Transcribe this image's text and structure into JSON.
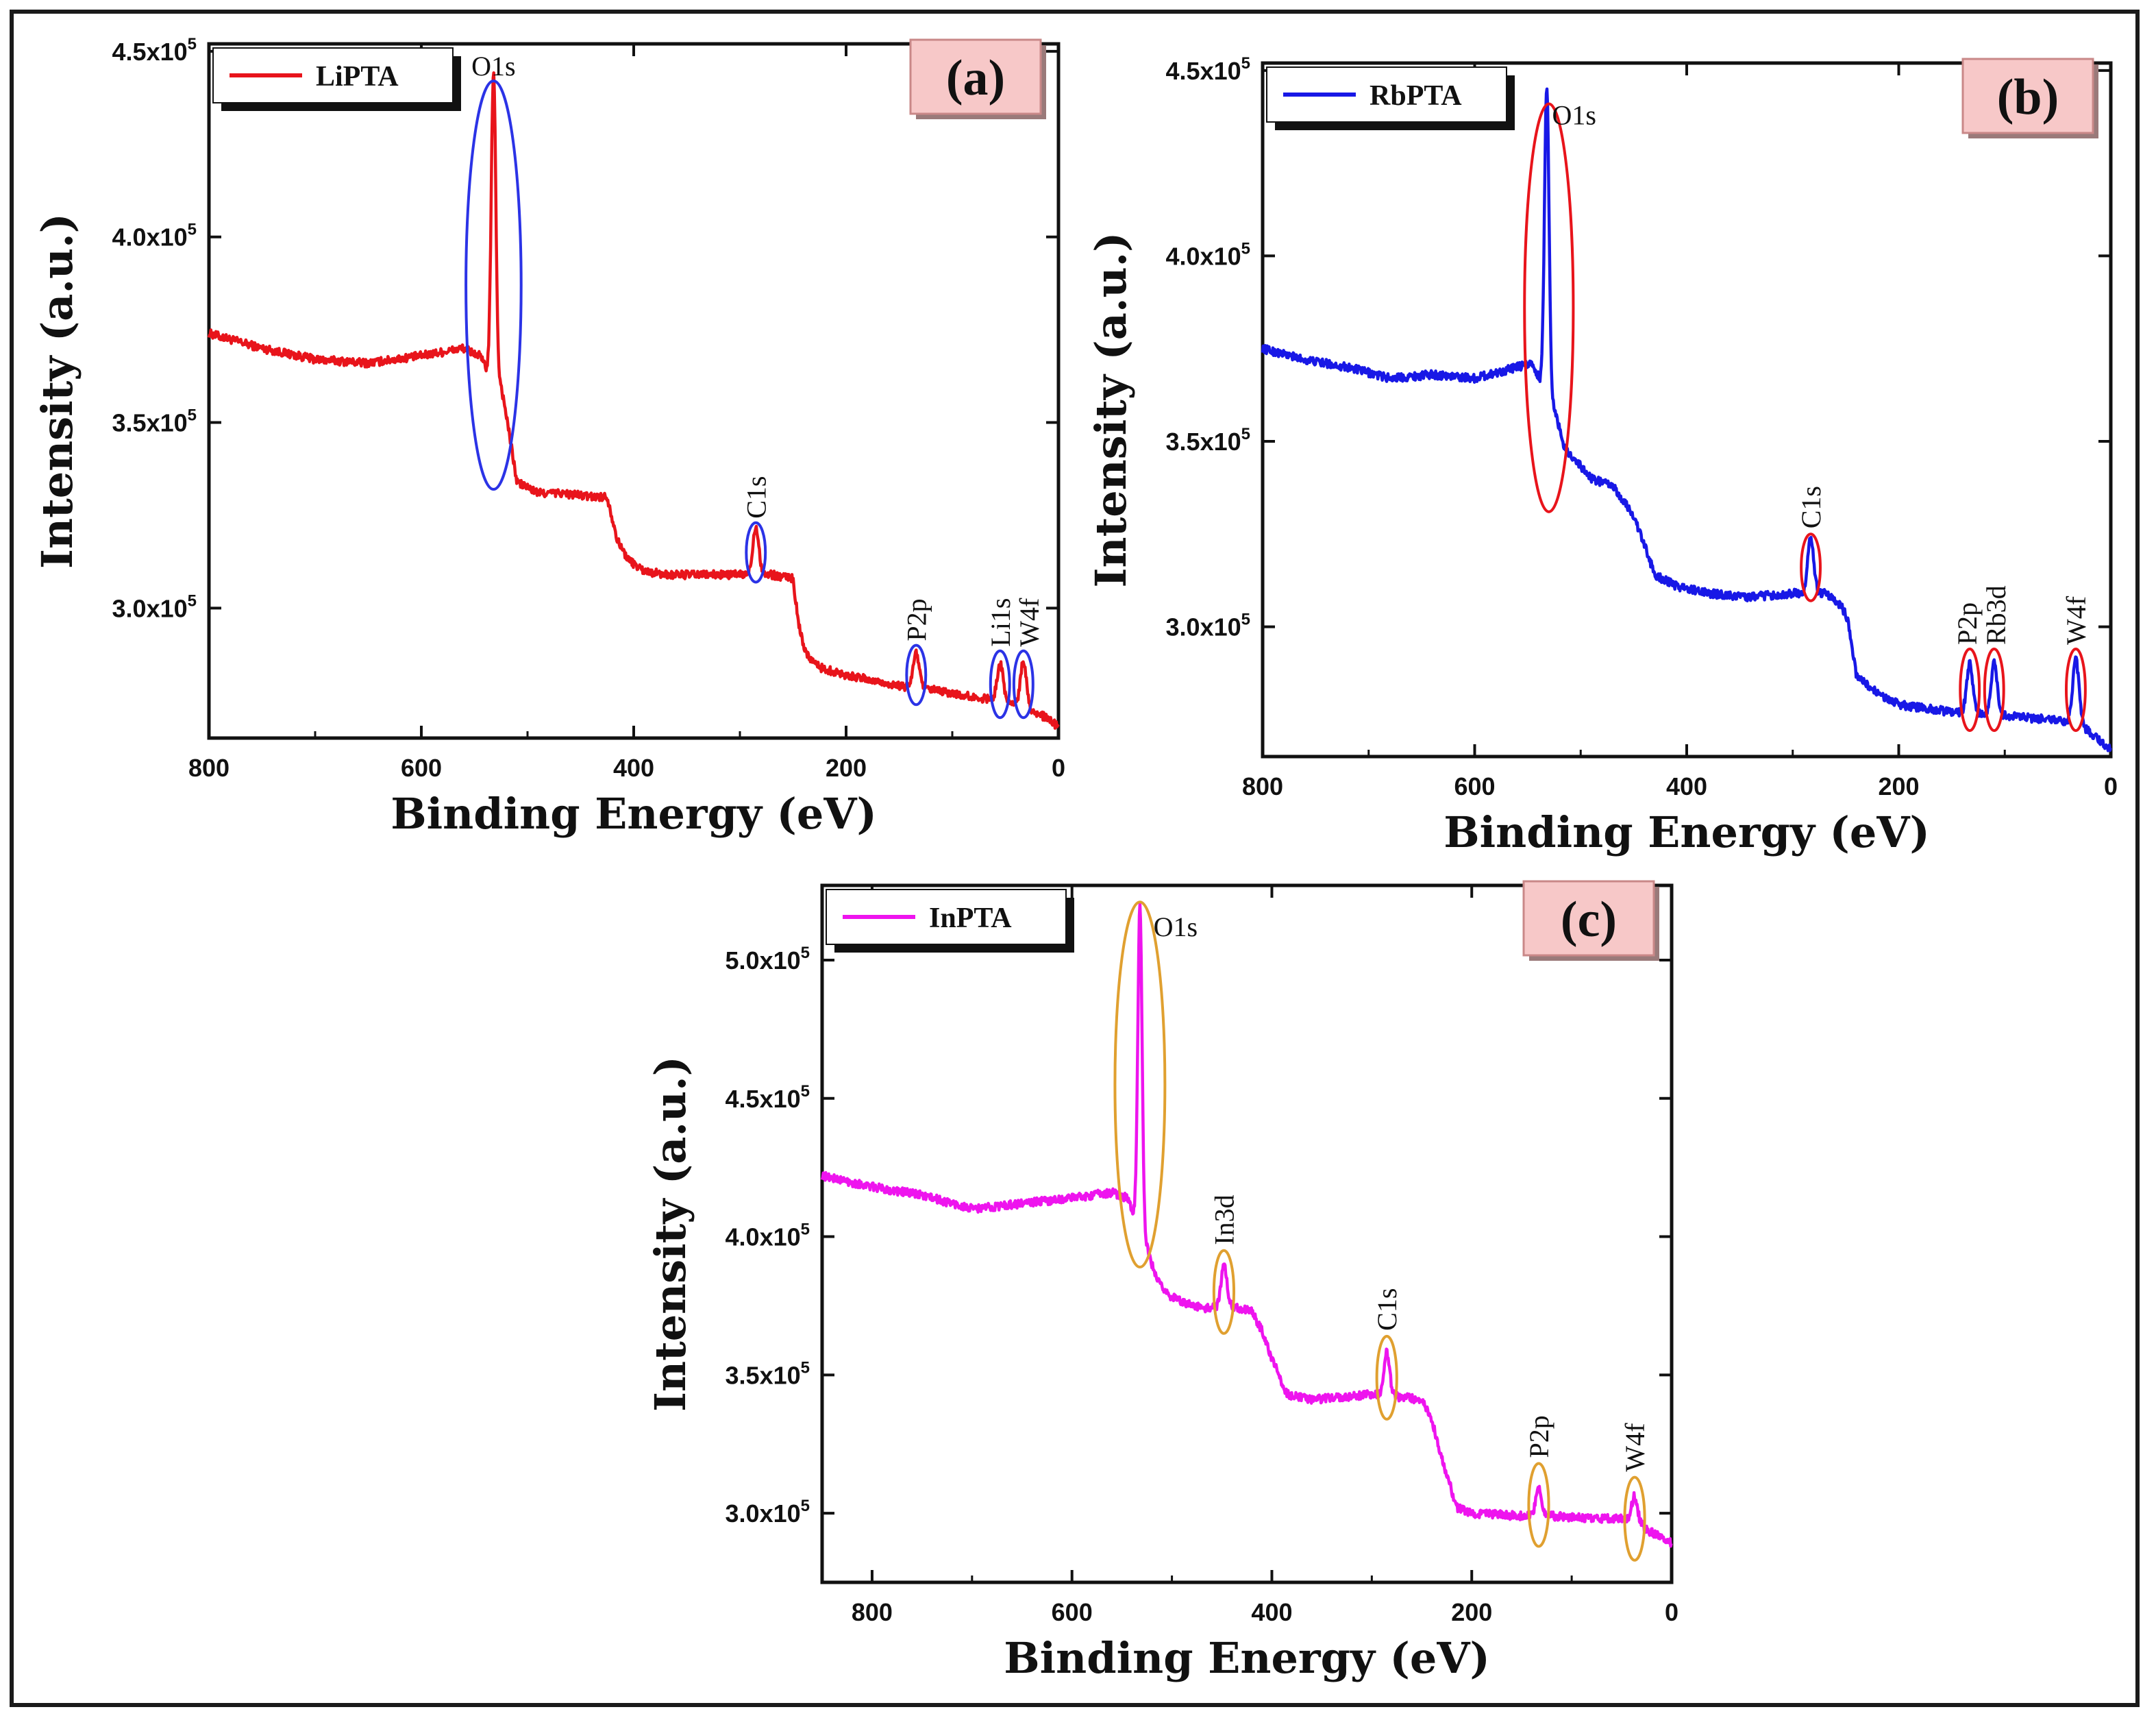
{
  "chart_data": [
    {
      "type": "line",
      "panel": "(a)",
      "series": [
        {
          "name": "LiPTA",
          "color": "#e8141b"
        }
      ],
      "marker_color": "#2b33e6",
      "xlabel": "Binding Energy (eV)",
      "ylabel": "Intensity (a.u.)",
      "xlim": [
        800,
        0
      ],
      "ylim": [
        265000,
        452000
      ],
      "xticks": [
        "800",
        "600",
        "400",
        "200",
        "0"
      ],
      "xtick_values": [
        800,
        600,
        400,
        200,
        0
      ],
      "yticks": [
        {
          "value": 300000,
          "base": "3.0x10",
          "exp": "5"
        },
        {
          "value": 350000,
          "base": "3.5x10",
          "exp": "5"
        },
        {
          "value": 400000,
          "base": "4.0x10",
          "exp": "5"
        },
        {
          "value": 450000,
          "base": "4.5x10",
          "exp": "5"
        }
      ],
      "baseline": [
        [
          800,
          374000
        ],
        [
          750,
          370000
        ],
        [
          700,
          367000
        ],
        [
          650,
          366000
        ],
        [
          600,
          368000
        ],
        [
          560,
          370000
        ],
        [
          545,
          368000
        ],
        [
          538,
          364000
        ],
        [
          532,
          362000
        ],
        [
          525,
          360000
        ],
        [
          520,
          352000
        ],
        [
          510,
          334000
        ],
        [
          490,
          331000
        ],
        [
          470,
          331000
        ],
        [
          440,
          330000
        ],
        [
          425,
          330000
        ],
        [
          415,
          318000
        ],
        [
          405,
          313000
        ],
        [
          390,
          310000
        ],
        [
          370,
          309000
        ],
        [
          340,
          309000
        ],
        [
          300,
          309000
        ],
        [
          270,
          309000
        ],
        [
          250,
          308000
        ],
        [
          245,
          296000
        ],
        [
          238,
          288000
        ],
        [
          225,
          284000
        ],
        [
          200,
          282000
        ],
        [
          150,
          279000
        ],
        [
          120,
          278000
        ],
        [
          80,
          276000
        ],
        [
          50,
          275000
        ],
        [
          30,
          273000
        ],
        [
          15,
          271000
        ],
        [
          0,
          268000
        ]
      ],
      "peaks": [
        {
          "label": "O1s",
          "x": 532,
          "top": 445000,
          "width": 3,
          "label_dx": 0,
          "label_dy": -48,
          "rotate": false
        },
        {
          "label": "C1s",
          "x": 285,
          "top": 322000,
          "width": 4,
          "label_dx": 0,
          "label_dy": -24,
          "rotate": true
        },
        {
          "label": "P2p",
          "x": 134,
          "top": 288000,
          "width": 4,
          "label_dx": 0,
          "label_dy": -24,
          "rotate": true
        },
        {
          "label": "Li1s",
          "x": 55,
          "top": 285000,
          "width": 4,
          "label_dx": 0,
          "label_dy": -24,
          "rotate": true
        },
        {
          "label": "W4f",
          "x": 33,
          "top": 286000,
          "width": 4,
          "label_dx": 8,
          "label_dy": -24,
          "rotate": true
        }
      ],
      "ellipses": [
        {
          "x": 532,
          "y": 387000,
          "rx": 26,
          "ry": 55000
        },
        {
          "x": 285,
          "y": 315000,
          "rx": 9,
          "ry": 8000
        },
        {
          "x": 134,
          "y": 282000,
          "rx": 9,
          "ry": 8000
        },
        {
          "x": 55,
          "y": 279500,
          "rx": 9,
          "ry": 9000
        },
        {
          "x": 33,
          "y": 279500,
          "rx": 9,
          "ry": 9000
        }
      ]
    },
    {
      "type": "line",
      "panel": "(b)",
      "series": [
        {
          "name": "RbPTA",
          "color": "#1818e6"
        }
      ],
      "marker_color": "#e8141b",
      "xlabel": "Binding Energy (eV)",
      "ylabel": "Intensity (a.u.)",
      "xlim": [
        800,
        0
      ],
      "ylim": [
        265000,
        452000
      ],
      "xticks": [
        "800",
        "600",
        "400",
        "200",
        "0"
      ],
      "xtick_values": [
        800,
        600,
        400,
        200,
        0
      ],
      "yticks": [
        {
          "value": 300000,
          "base": "3.0x10",
          "exp": "5"
        },
        {
          "value": 350000,
          "base": "3.5x10",
          "exp": "5"
        },
        {
          "value": 400000,
          "base": "4.0x10",
          "exp": "5"
        },
        {
          "value": 450000,
          "base": "4.5x10",
          "exp": "5"
        }
      ],
      "baseline": [
        [
          800,
          375000
        ],
        [
          760,
          372000
        ],
        [
          720,
          370000
        ],
        [
          680,
          367000
        ],
        [
          640,
          368000
        ],
        [
          600,
          367000
        ],
        [
          560,
          370000
        ],
        [
          545,
          371000
        ],
        [
          538,
          366000
        ],
        [
          532,
          364000
        ],
        [
          525,
          359000
        ],
        [
          515,
          348000
        ],
        [
          505,
          345000
        ],
        [
          490,
          340000
        ],
        [
          470,
          338000
        ],
        [
          450,
          330000
        ],
        [
          440,
          322000
        ],
        [
          430,
          314000
        ],
        [
          410,
          311000
        ],
        [
          380,
          309000
        ],
        [
          340,
          308000
        ],
        [
          300,
          309000
        ],
        [
          270,
          309000
        ],
        [
          255,
          306000
        ],
        [
          248,
          302000
        ],
        [
          240,
          287000
        ],
        [
          225,
          283000
        ],
        [
          200,
          279000
        ],
        [
          150,
          277000
        ],
        [
          100,
          276000
        ],
        [
          60,
          275000
        ],
        [
          30,
          274000
        ],
        [
          10,
          269000
        ],
        [
          0,
          267000
        ]
      ],
      "peaks": [
        {
          "label": "O1s",
          "x": 532,
          "top": 446000,
          "width": 3,
          "label_dx": 40,
          "label_dy": -10,
          "rotate": false
        },
        {
          "label": "C1s",
          "x": 283,
          "top": 324000,
          "width": 4,
          "label_dx": 0,
          "label_dy": -26,
          "rotate": true
        },
        {
          "label": "P2p",
          "x": 133,
          "top": 290000,
          "width": 4,
          "label_dx": -4,
          "label_dy": -24,
          "rotate": true
        },
        {
          "label": "Rb3d",
          "x": 110,
          "top": 290000,
          "width": 4,
          "label_dx": 2,
          "label_dy": -24,
          "rotate": true
        },
        {
          "label": "W4f",
          "x": 33,
          "top": 291000,
          "width": 4,
          "label_dx": 0,
          "label_dy": -24,
          "rotate": true
        }
      ],
      "ellipses": [
        {
          "x": 530,
          "y": 386000,
          "rx": 23,
          "ry": 55000
        },
        {
          "x": 283,
          "y": 316000,
          "rx": 9,
          "ry": 9000
        },
        {
          "x": 133,
          "y": 283000,
          "rx": 9,
          "ry": 11000
        },
        {
          "x": 110,
          "y": 283000,
          "rx": 9,
          "ry": 11000
        },
        {
          "x": 33,
          "y": 283000,
          "rx": 9,
          "ry": 11000
        }
      ]
    },
    {
      "type": "line",
      "panel": "(c)",
      "series": [
        {
          "name": "InPTA",
          "color": "#ee14ee"
        }
      ],
      "marker_color": "#e0a030",
      "xlabel": "Binding Energy (eV)",
      "ylabel": "Intensity (a.u.)",
      "xlim": [
        850,
        0
      ],
      "ylim": [
        275000,
        527000
      ],
      "xticks": [
        "800",
        "600",
        "400",
        "200",
        "0"
      ],
      "xtick_values": [
        800,
        600,
        400,
        200,
        0
      ],
      "yticks": [
        {
          "value": 300000,
          "base": "3.0x10",
          "exp": "5"
        },
        {
          "value": 350000,
          "base": "3.5x10",
          "exp": "5"
        },
        {
          "value": 400000,
          "base": "4.0x10",
          "exp": "5"
        },
        {
          "value": 450000,
          "base": "4.5x10",
          "exp": "5"
        },
        {
          "value": 500000,
          "base": "5.0x10",
          "exp": "5"
        }
      ],
      "baseline": [
        [
          850,
          422000
        ],
        [
          800,
          418000
        ],
        [
          750,
          415000
        ],
        [
          700,
          410000
        ],
        [
          650,
          412000
        ],
        [
          600,
          414000
        ],
        [
          560,
          416000
        ],
        [
          545,
          414000
        ],
        [
          538,
          408000
        ],
        [
          532,
          404000
        ],
        [
          525,
          396000
        ],
        [
          515,
          384000
        ],
        [
          500,
          378000
        ],
        [
          470,
          374000
        ],
        [
          440,
          375000
        ],
        [
          420,
          373000
        ],
        [
          410,
          366000
        ],
        [
          400,
          356000
        ],
        [
          385,
          343000
        ],
        [
          360,
          341000
        ],
        [
          330,
          342000
        ],
        [
          300,
          343000
        ],
        [
          270,
          342000
        ],
        [
          250,
          341000
        ],
        [
          240,
          334000
        ],
        [
          230,
          320000
        ],
        [
          215,
          302000
        ],
        [
          200,
          300000
        ],
        [
          150,
          299000
        ],
        [
          120,
          299000
        ],
        [
          80,
          298000
        ],
        [
          40,
          298000
        ],
        [
          20,
          293000
        ],
        [
          0,
          289000
        ]
      ],
      "peaks": [
        {
          "label": "O1s",
          "x": 532,
          "top": 520000,
          "width": 3,
          "label_dx": 52,
          "label_dy": 10,
          "rotate": false
        },
        {
          "label": "In3d",
          "x": 448,
          "top": 390000,
          "width": 4,
          "label_dx": 0,
          "label_dy": -26,
          "rotate": true
        },
        {
          "label": "C1s",
          "x": 285,
          "top": 358000,
          "width": 4,
          "label_dx": 0,
          "label_dy": -26,
          "rotate": true
        },
        {
          "label": "P2p",
          "x": 133,
          "top": 310000,
          "width": 4,
          "label_dx": 0,
          "label_dy": -26,
          "rotate": true
        },
        {
          "label": "W4f",
          "x": 37,
          "top": 306000,
          "width": 4,
          "label_dx": 0,
          "label_dy": -26,
          "rotate": true
        }
      ],
      "ellipses": [
        {
          "x": 532,
          "y": 455000,
          "rx": 25,
          "ry": 66000
        },
        {
          "x": 448,
          "y": 380000,
          "rx": 10,
          "ry": 15000
        },
        {
          "x": 285,
          "y": 349000,
          "rx": 10,
          "ry": 15000
        },
        {
          "x": 133,
          "y": 303000,
          "rx": 10,
          "ry": 15000
        },
        {
          "x": 37,
          "y": 298000,
          "rx": 10,
          "ry": 15000
        }
      ]
    }
  ]
}
